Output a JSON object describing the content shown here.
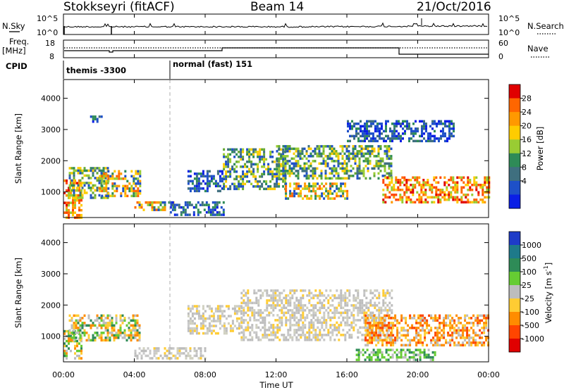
{
  "header": {
    "station": "Stokkseyri (fitACF)",
    "beam": "Beam 14",
    "date": "21/Oct/2016"
  },
  "top_panel": {
    "left_label": "N.Sky",
    "right_label": "N.Search",
    "left_ticks": [
      "10^5",
      "10^0"
    ],
    "right_ticks": [
      "10^5",
      "10^0"
    ]
  },
  "freq_panel": {
    "left_label_1": "Freq.",
    "left_label_2": "[MHz]",
    "right_label": "Nave",
    "left_ticks": [
      "18",
      "8"
    ],
    "right_ticks": [
      "60",
      "0"
    ]
  },
  "cpid_panel": {
    "label": "CPID",
    "modes": [
      {
        "name": "themis -3300",
        "start_hour": 0
      },
      {
        "name": "normal (fast) 151",
        "start_hour": 6
      }
    ]
  },
  "power_panel": {
    "ylabel": "Slant Range [km]",
    "colorbar_label": "Power [dB]",
    "colorbar_ticks": [
      "28",
      "24",
      "20",
      "16",
      "12",
      "8",
      "4"
    ],
    "colorbar_colors": [
      "#e00000",
      "#ff6600",
      "#ff9900",
      "#ffcc00",
      "#99cc33",
      "#2e8b57",
      "#3f6f7f",
      "#1e50c8",
      "#0a1ee6"
    ]
  },
  "velocity_panel": {
    "ylabel": "Slant Range [km]",
    "colorbar_label": "Velocity [m s^-1]",
    "colorbar_ticks": [
      "1000",
      "500",
      "100",
      "25",
      "-25",
      "-100",
      "-500",
      "-1000"
    ],
    "colorbar_colors": [
      "#1e3cc8",
      "#1e7a8a",
      "#2e8b57",
      "#66cc33",
      "#bdbdbd",
      "#ffcc33",
      "#ff8c00",
      "#ff4500",
      "#e00000"
    ]
  },
  "xaxis": {
    "label": "Time UT",
    "ticks": [
      "00:00",
      "04:00",
      "08:00",
      "12:00",
      "16:00",
      "20:00",
      "00:00"
    ]
  },
  "yaxis_ticks": [
    "1000",
    "2000",
    "3000",
    "4000"
  ],
  "chart_data": {
    "type": "heatmap",
    "xlabel": "Time UT",
    "ylabel": "Slant Range [km]",
    "xlim_hours": [
      0,
      24
    ],
    "ylim_km": [
      180,
      4600
    ],
    "power_clusters": [
      {
        "t0": 0.0,
        "t1": 1.0,
        "r0": 200,
        "r1": 1400,
        "level": "high"
      },
      {
        "t0": 0.3,
        "t1": 2.5,
        "r0": 800,
        "r1": 1800,
        "level": "mid"
      },
      {
        "t0": 2.0,
        "t1": 4.3,
        "r0": 900,
        "r1": 1700,
        "level": "mid-high"
      },
      {
        "t0": 1.5,
        "t1": 2.2,
        "r0": 3250,
        "r1": 3450,
        "level": "low"
      },
      {
        "t0": 4.0,
        "t1": 6.2,
        "r0": 450,
        "r1": 700,
        "level": "mid-high"
      },
      {
        "t0": 6.0,
        "t1": 9.0,
        "r0": 250,
        "r1": 700,
        "level": "low"
      },
      {
        "t0": 7.0,
        "t1": 9.0,
        "r0": 1000,
        "r1": 1700,
        "level": "low"
      },
      {
        "t0": 9.0,
        "t1": 12.5,
        "r0": 1100,
        "r1": 2400,
        "level": "mid"
      },
      {
        "t0": 12.0,
        "t1": 18.5,
        "r0": 1400,
        "r1": 2500,
        "level": "mid"
      },
      {
        "t0": 12.5,
        "t1": 16.0,
        "r0": 800,
        "r1": 1300,
        "level": "mid-high"
      },
      {
        "t0": 18.0,
        "t1": 24.0,
        "r0": 700,
        "r1": 1500,
        "level": "high"
      },
      {
        "t0": 16.0,
        "t1": 22.0,
        "r0": 2600,
        "r1": 3300,
        "level": "low"
      }
    ],
    "velocity_clusters": [
      {
        "t0": 0.0,
        "t1": 1.0,
        "r0": 300,
        "r1": 1200,
        "sign": "mixed"
      },
      {
        "t0": 0.3,
        "t1": 4.3,
        "r0": 900,
        "r1": 1700,
        "sign": "negative-low"
      },
      {
        "t0": 4.0,
        "t1": 8.0,
        "r0": 300,
        "r1": 650,
        "sign": "near-zero"
      },
      {
        "t0": 7.0,
        "t1": 10.0,
        "r0": 1100,
        "r1": 2000,
        "sign": "near-zero"
      },
      {
        "t0": 10.0,
        "t1": 18.5,
        "r0": 900,
        "r1": 2500,
        "sign": "near-zero"
      },
      {
        "t0": 17.0,
        "t1": 24.0,
        "r0": 700,
        "r1": 1700,
        "sign": "negative"
      },
      {
        "t0": 16.5,
        "t1": 21.0,
        "r0": 250,
        "r1": 600,
        "sign": "positive"
      }
    ]
  }
}
